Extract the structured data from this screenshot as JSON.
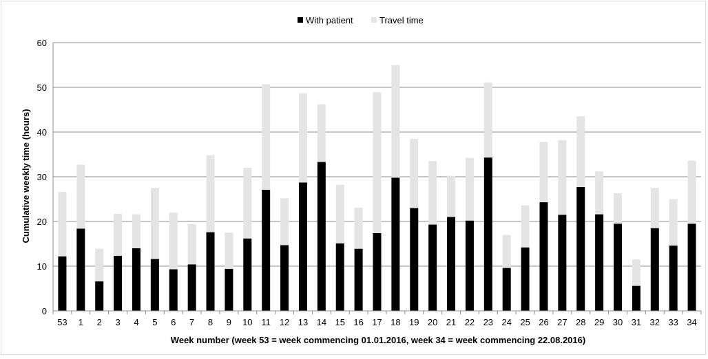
{
  "chart_data": {
    "type": "bar",
    "stacked": true,
    "title": "",
    "xlabel": "Week number (week 53 = week commencing 01.01.2016, week 34 = week commencing 22.08.2016)",
    "ylabel": "Cumulative weekly time (hours)",
    "ylim": [
      0,
      60
    ],
    "yticks": [
      0,
      10,
      20,
      30,
      40,
      50,
      60
    ],
    "grid": true,
    "legend_position": "top-center",
    "categories": [
      "53",
      "1",
      "2",
      "3",
      "4",
      "5",
      "6",
      "7",
      "8",
      "9",
      "10",
      "11",
      "12",
      "13",
      "14",
      "15",
      "16",
      "17",
      "18",
      "19",
      "20",
      "21",
      "22",
      "23",
      "24",
      "25",
      "26",
      "27",
      "28",
      "29",
      "30",
      "31",
      "32",
      "33",
      "34"
    ],
    "series": [
      {
        "name": "With patient",
        "color": "#000000",
        "values": [
          12.2,
          18.4,
          6.6,
          12.3,
          14.0,
          11.6,
          9.3,
          10.4,
          17.6,
          9.4,
          16.2,
          27.1,
          14.7,
          28.7,
          33.3,
          15.1,
          13.9,
          17.4,
          29.8,
          23.0,
          19.3,
          21.0,
          20.2,
          34.3,
          9.6,
          14.2,
          24.3,
          21.5,
          27.7,
          21.6,
          19.5,
          5.6,
          18.5,
          14.6,
          19.5
        ]
      },
      {
        "name": "Travel time",
        "color": "#e4e4e4",
        "values": [
          14.4,
          14.3,
          7.3,
          9.4,
          7.6,
          15.9,
          12.7,
          9.0,
          17.2,
          8.1,
          15.8,
          23.6,
          10.5,
          20.0,
          12.9,
          13.1,
          9.2,
          31.5,
          25.2,
          15.5,
          14.2,
          9.2,
          14.0,
          16.8,
          7.4,
          9.4,
          13.5,
          16.7,
          15.8,
          9.6,
          6.8,
          5.9,
          9.0,
          10.4,
          14.1
        ]
      }
    ]
  }
}
